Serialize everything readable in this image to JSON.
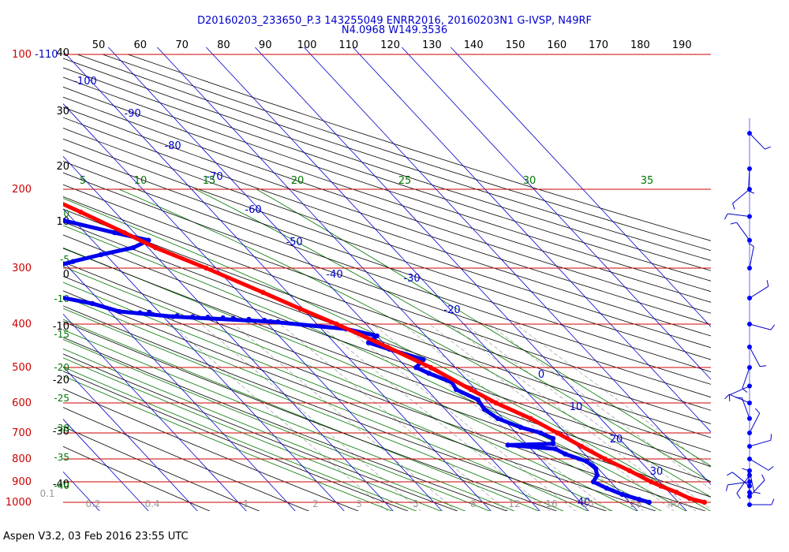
{
  "header": {
    "title_line1": "D20160203_233650_P.3 143255049 ENRR2016, 20160203N1 G-IVSP, N49RF",
    "title_line2": "N4.0968 W149.3536"
  },
  "footer": {
    "text": "Aspen V3.2, 03 Feb 2016  23:55 UTC"
  },
  "colors": {
    "isobar": "#cc0000",
    "isotherm": "#0000cc",
    "dry_adiabat": "#000000",
    "moist_adiabat": "#007700",
    "mixing_ratio": "#999999",
    "temperature_trace": "#ff0000",
    "dewpoint_trace": "#0000ee",
    "wind_barb": "#0000cc",
    "wind_station": "#0000ff"
  },
  "chart_data": {
    "type": "skew-t log-p sounding",
    "top_axis_labels": [
      "50",
      "60",
      "70",
      "80",
      "90",
      "100",
      "110",
      "120",
      "130",
      "140",
      "150",
      "160",
      "170",
      "180",
      "190"
    ],
    "pressure_levels": [
      {
        "p": 100,
        "label": "100",
        "extra": "-110"
      },
      {
        "p": 200,
        "label": "200"
      },
      {
        "p": 300,
        "label": "300"
      },
      {
        "p": 400,
        "label": "400"
      },
      {
        "p": 500,
        "label": "500"
      },
      {
        "p": 600,
        "label": "600"
      },
      {
        "p": 700,
        "label": "700"
      },
      {
        "p": 800,
        "label": "800"
      },
      {
        "p": 900,
        "label": "900"
      },
      {
        "p": 1000,
        "label": "1000"
      }
    ],
    "left_black_labels": [
      "40",
      "30",
      "20",
      "10",
      "0",
      "-10",
      "-20",
      "-30",
      "-40"
    ],
    "left_green_labels": [
      "0",
      "-5",
      "-10",
      "-15",
      "-20",
      "-25",
      "-30",
      "-35",
      "-40"
    ],
    "isotherm_labels": [
      "-100",
      "-90",
      "-80",
      "-70",
      "-60",
      "-50",
      "-40",
      "-30",
      "-20",
      "0",
      "10",
      "20",
      "30",
      "40"
    ],
    "moist_adiabat_top_labels": [
      "5",
      "10",
      "15",
      "20",
      "25",
      "30",
      "35"
    ],
    "mixing_ratio_labels": [
      "0.1",
      "0.2",
      "0.4",
      "1",
      "2",
      "3",
      "5",
      "8",
      "12",
      "16",
      "20",
      "28",
      "40"
    ],
    "temperature_C": [
      {
        "p": 1000,
        "t": 25.3
      },
      {
        "p": 980,
        "t": 23.0
      },
      {
        "p": 950,
        "t": 21.5
      },
      {
        "p": 920,
        "t": 19.5
      },
      {
        "p": 900,
        "t": 18.3
      },
      {
        "p": 850,
        "t": 16.0
      },
      {
        "p": 800,
        "t": 13.2
      },
      {
        "p": 750,
        "t": 10.8
      },
      {
        "p": 700,
        "t": 8.4
      },
      {
        "p": 650,
        "t": 5.7
      },
      {
        "p": 600,
        "t": 1.6
      },
      {
        "p": 560,
        "t": -1.0
      },
      {
        "p": 500,
        "t": -5.0
      },
      {
        "p": 450,
        "t": -10.0
      },
      {
        "p": 400,
        "t": -16.0
      },
      {
        "p": 370,
        "t": -20.5
      },
      {
        "p": 340,
        "t": -25.0
      },
      {
        "p": 300,
        "t": -32.0
      },
      {
        "p": 270,
        "t": -38.5
      },
      {
        "p": 250,
        "t": -42.0
      },
      {
        "p": 225,
        "t": -47.0
      },
      {
        "p": 200,
        "t": -53.0
      },
      {
        "p": 180,
        "t": -57.0
      }
    ],
    "temperature_isolated_point": {
      "p": 165,
      "t": -65.0
    },
    "dewpoint_C": [
      {
        "p": 1000,
        "t": 14.0
      },
      {
        "p": 985,
        "t": 12.5
      },
      {
        "p": 960,
        "t": 10.0
      },
      {
        "p": 930,
        "t": 8.0
      },
      {
        "p": 900,
        "t": 6.5
      },
      {
        "p": 870,
        "t": 8.5
      },
      {
        "p": 840,
        "t": 9.5
      },
      {
        "p": 810,
        "t": 9.0
      },
      {
        "p": 780,
        "t": 6.0
      },
      {
        "p": 760,
        "t": 5.0
      },
      {
        "p": 745,
        "t": -4.0
      },
      {
        "p": 740,
        "t": 5.5
      },
      {
        "p": 720,
        "t": 6.5
      },
      {
        "p": 700,
        "t": 5.0
      },
      {
        "p": 680,
        "t": 2.0
      },
      {
        "p": 650,
        "t": -1.0
      },
      {
        "p": 620,
        "t": -2.0
      },
      {
        "p": 590,
        "t": -1.5
      },
      {
        "p": 560,
        "t": -4.0
      },
      {
        "p": 540,
        "t": -3.5
      },
      {
        "p": 515,
        "t": -6.5
      },
      {
        "p": 500,
        "t": -8.0
      },
      {
        "p": 480,
        "t": -5.0
      },
      {
        "p": 455,
        "t": -10.0
      },
      {
        "p": 440,
        "t": -13.0
      },
      {
        "p": 425,
        "t": -10.0
      },
      {
        "p": 410,
        "t": -15.0
      },
      {
        "p": 395,
        "t": -29.0
      },
      {
        "p": 385,
        "t": -48.0
      },
      {
        "p": 375,
        "t": -58.0
      },
      {
        "p": 360,
        "t": -62.0
      },
      {
        "p": 345,
        "t": -69.0
      },
      {
        "p": 330,
        "t": -72.0
      },
      {
        "p": 310,
        "t": -70.0
      },
      {
        "p": 300,
        "t": -64.0
      },
      {
        "p": 290,
        "t": -58.0
      },
      {
        "p": 280,
        "t": -51.0
      },
      {
        "p": 270,
        "t": -43.0
      },
      {
        "p": 260,
        "t": -38.5
      },
      {
        "p": 250,
        "t": -44.0
      },
      {
        "p": 235,
        "t": -52.0
      },
      {
        "p": 220,
        "t": -58.0
      },
      {
        "p": 210,
        "t": -61.0
      },
      {
        "p": 200,
        "t": -66.0
      }
    ],
    "dewpoint_scatter_C": [
      {
        "p": 395,
        "t": -27.5
      },
      {
        "p": 392,
        "t": -30.0
      },
      {
        "p": 390,
        "t": -33.0
      },
      {
        "p": 388,
        "t": -36.0
      },
      {
        "p": 387,
        "t": -38.0
      },
      {
        "p": 386,
        "t": -41.0
      },
      {
        "p": 385,
        "t": -44.0
      },
      {
        "p": 383,
        "t": -47.0
      },
      {
        "p": 376,
        "t": -52.0
      },
      {
        "p": 377,
        "t": -54.0
      }
    ],
    "wind_station_pressures": [
      1000,
      970,
      950,
      920,
      900,
      870,
      850,
      800,
      750,
      700,
      650,
      600,
      550,
      500,
      450,
      400,
      350,
      300,
      260,
      230,
      200,
      180,
      150
    ]
  }
}
